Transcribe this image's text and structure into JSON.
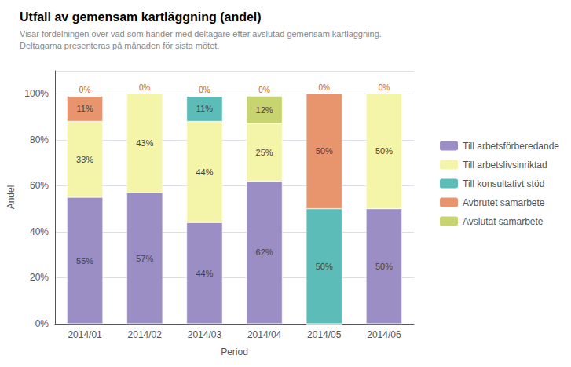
{
  "chart_data": {
    "type": "bar",
    "stacked": true,
    "title": "Utfall av gemensam kartläggning (andel)",
    "subtitle": "Visar fördelningen över vad som händer med deltagare efter avslutad gemensam kartläggning. Deltagarna presenteras på månaden för sista mötet.",
    "xlabel": "Period",
    "ylabel": "Andel",
    "categories": [
      "2014/01",
      "2014/02",
      "2014/03",
      "2014/04",
      "2014/05",
      "2014/06"
    ],
    "series": [
      {
        "name": "Till arbetsförberedande",
        "color": "#9b8ec4",
        "values": [
          0.55,
          0.57,
          0.44,
          0.62,
          0.0,
          0.5
        ],
        "value_labels": [
          "55%",
          "57%",
          "44%",
          "62%",
          null,
          "50%"
        ]
      },
      {
        "name": "Till arbetslivsinriktad",
        "color": "#f5f5aa",
        "values": [
          0.33,
          0.43,
          0.44,
          0.25,
          0.0,
          0.5
        ],
        "value_labels": [
          "33%",
          "43%",
          "44%",
          "25%",
          null,
          "50%"
        ]
      },
      {
        "name": "Till konsultativt stöd",
        "color": "#5bbcb8",
        "values": [
          0.0,
          0.0,
          0.11,
          0.0,
          0.5,
          0.0
        ],
        "value_labels": [
          null,
          null,
          "11%",
          null,
          "50%",
          null
        ]
      },
      {
        "name": "Avbrutet samarbete",
        "color": "#e8956d",
        "values": [
          0.11,
          0.0,
          0.0,
          0.0,
          0.5,
          0.0
        ],
        "value_labels": [
          "11%",
          null,
          null,
          null,
          "50%",
          null
        ]
      },
      {
        "name": "Avslutat samarbete",
        "color": "#c8d470",
        "values": [
          0.0,
          0.0,
          0.0,
          0.12,
          0.0,
          0.0
        ],
        "value_labels": [
          null,
          null,
          null,
          "12%",
          null,
          null
        ]
      }
    ],
    "data_labels": true,
    "annotations": [
      {
        "category": "2014/01",
        "text": "0%"
      },
      {
        "category": "2014/02",
        "text": "0%"
      },
      {
        "category": "2014/03",
        "text": "0%"
      },
      {
        "category": "2014/04",
        "text": "0%"
      },
      {
        "category": "2014/05",
        "text": "0%"
      },
      {
        "category": "2014/06",
        "text": "0%"
      }
    ],
    "ylim": [
      0,
      1.1
    ],
    "yticks": [
      {
        "value": 0,
        "label": "0%"
      },
      {
        "value": 0.2,
        "label": "20%"
      },
      {
        "value": 0.4,
        "label": "40%"
      },
      {
        "value": 0.6,
        "label": "60%"
      },
      {
        "value": 0.8,
        "label": "80%"
      },
      {
        "value": 1.0,
        "label": "100%"
      }
    ],
    "grid": true,
    "legend": "right"
  }
}
